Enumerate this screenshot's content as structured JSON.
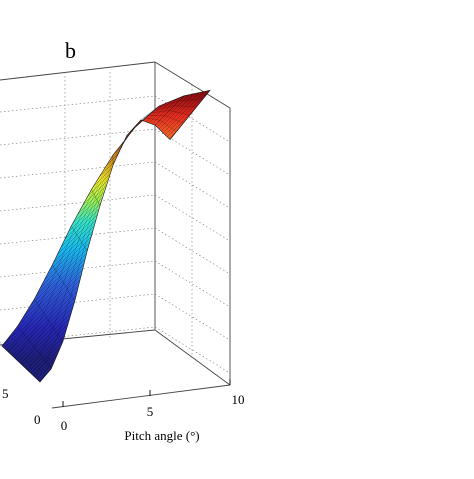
{
  "chart_data": {
    "type": "surface",
    "panel_label": "b",
    "xlabel": "Pitch angle (°)",
    "x_ticks": [
      "0",
      "5",
      "10"
    ],
    "y_ticks": [
      "5",
      "0"
    ],
    "grid": true,
    "colormap": "jet",
    "pitch": [
      0,
      1,
      2,
      3,
      4,
      5,
      6,
      7,
      8,
      9,
      10
    ],
    "normalized_height": [
      0.0,
      0.04,
      0.14,
      0.3,
      0.5,
      0.68,
      0.84,
      0.95,
      1.0,
      0.96,
      0.88
    ]
  }
}
